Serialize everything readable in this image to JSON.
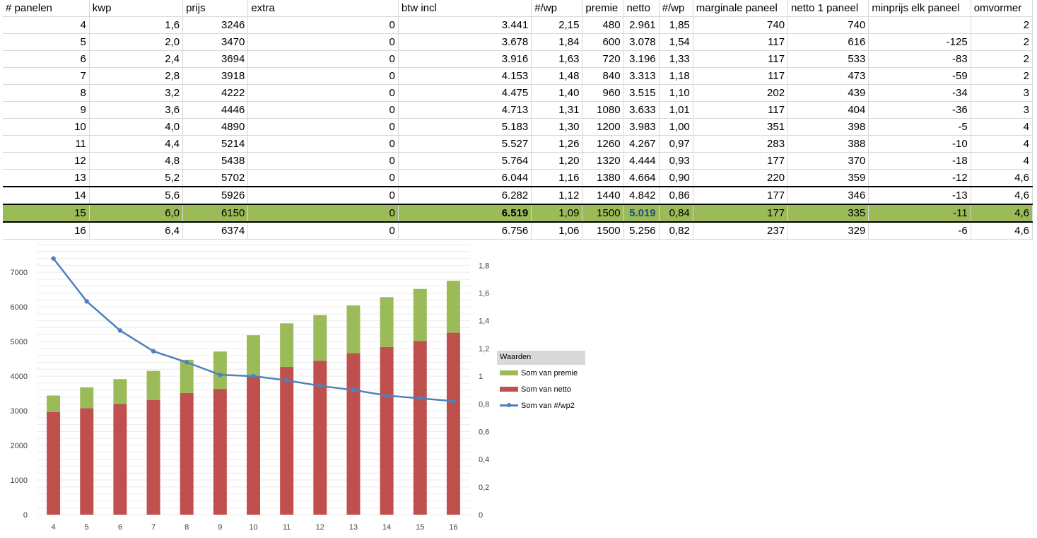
{
  "table": {
    "headers": [
      "# panelen",
      "kwp",
      "prijs",
      "extra",
      "btw incl",
      "#/wp",
      "premie",
      "netto",
      "#/wp",
      "marginale paneel",
      "netto 1 paneel",
      "minprijs elk paneel",
      "omvormer"
    ],
    "rows": [
      [
        "4",
        "1,6",
        "3246",
        "0",
        "3.441",
        "2,15",
        "480",
        "2.961",
        "1,85",
        "740",
        "740",
        "",
        "2"
      ],
      [
        "5",
        "2,0",
        "3470",
        "0",
        "3.678",
        "1,84",
        "600",
        "3.078",
        "1,54",
        "117",
        "616",
        "-125",
        "2"
      ],
      [
        "6",
        "2,4",
        "3694",
        "0",
        "3.916",
        "1,63",
        "720",
        "3.196",
        "1,33",
        "117",
        "533",
        "-83",
        "2"
      ],
      [
        "7",
        "2,8",
        "3918",
        "0",
        "4.153",
        "1,48",
        "840",
        "3.313",
        "1,18",
        "117",
        "473",
        "-59",
        "2"
      ],
      [
        "8",
        "3,2",
        "4222",
        "0",
        "4.475",
        "1,40",
        "960",
        "3.515",
        "1,10",
        "202",
        "439",
        "-34",
        "3"
      ],
      [
        "9",
        "3,6",
        "4446",
        "0",
        "4.713",
        "1,31",
        "1080",
        "3.633",
        "1,01",
        "117",
        "404",
        "-36",
        "3"
      ],
      [
        "10",
        "4,0",
        "4890",
        "0",
        "5.183",
        "1,30",
        "1200",
        "3.983",
        "1,00",
        "351",
        "398",
        "-5",
        "4"
      ],
      [
        "11",
        "4,4",
        "5214",
        "0",
        "5.527",
        "1,26",
        "1260",
        "4.267",
        "0,97",
        "283",
        "388",
        "-10",
        "4"
      ],
      [
        "12",
        "4,8",
        "5438",
        "0",
        "5.764",
        "1,20",
        "1320",
        "4.444",
        "0,93",
        "177",
        "370",
        "-18",
        "4"
      ],
      [
        "13",
        "5,2",
        "5702",
        "0",
        "6.044",
        "1,16",
        "1380",
        "4.664",
        "0,90",
        "220",
        "359",
        "-12",
        "4,6"
      ],
      [
        "14",
        "5,6",
        "5926",
        "0",
        "6.282",
        "1,12",
        "1440",
        "4.842",
        "0,86",
        "177",
        "346",
        "-13",
        "4,6"
      ],
      [
        "15",
        "6,0",
        "6150",
        "0",
        "6.519",
        "1,09",
        "1500",
        "5.019",
        "0,84",
        "177",
        "335",
        "-11",
        "4,6"
      ],
      [
        "16",
        "6,4",
        "6374",
        "0",
        "6.756",
        "1,06",
        "1500",
        "5.256",
        "0,82",
        "237",
        "329",
        "-6",
        "4,6"
      ]
    ]
  },
  "legend": {
    "title": "Waarden",
    "premie": "Som van premie",
    "netto": "Som van netto",
    "line": "Som van #/wp2"
  },
  "colors": {
    "premie": "#9bbb59",
    "netto": "#c0504d",
    "line": "#4f81bd",
    "highlight": "#9bbb59"
  },
  "chart_data": {
    "type": "bar",
    "stacked": true,
    "categories": [
      "4",
      "5",
      "6",
      "7",
      "8",
      "9",
      "10",
      "11",
      "12",
      "13",
      "14",
      "15",
      "16"
    ],
    "series": [
      {
        "name": "Som van netto",
        "values": [
          2961,
          3078,
          3196,
          3313,
          3515,
          3633,
          3983,
          4267,
          4444,
          4664,
          4842,
          5019,
          5256
        ]
      },
      {
        "name": "Som van premie",
        "values": [
          480,
          600,
          720,
          840,
          960,
          1080,
          1200,
          1260,
          1320,
          1380,
          1440,
          1500,
          1500
        ]
      }
    ],
    "line_series": {
      "name": "Som van #/wp2",
      "axis": "secondary",
      "values": [
        1.85,
        1.54,
        1.33,
        1.18,
        1.1,
        1.01,
        1.0,
        0.97,
        0.93,
        0.9,
        0.86,
        0.84,
        0.82
      ]
    },
    "ylim": [
      0,
      7800
    ],
    "yticks": [
      "0",
      "1000",
      "2000",
      "3000",
      "4000",
      "5000",
      "6000",
      "7000"
    ],
    "y2lim": [
      0,
      1.95
    ],
    "y2ticks": [
      "0",
      "0,2",
      "0,4",
      "0,6",
      "0,8",
      "1",
      "1,2",
      "1,4",
      "1,6",
      "1,8"
    ],
    "grid": true,
    "legend_position": "right"
  }
}
